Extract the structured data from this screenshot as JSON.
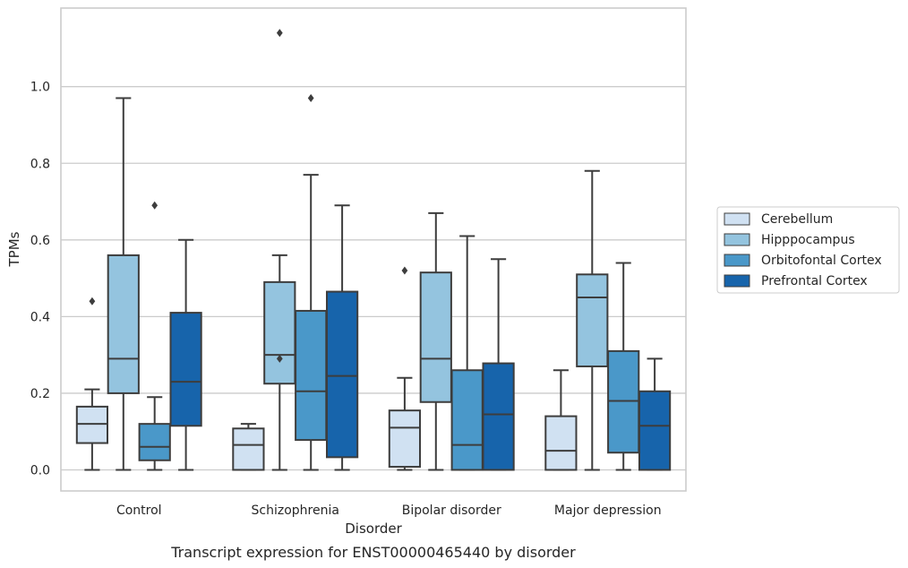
{
  "chart_data": {
    "type": "box",
    "caption": "Transcript expression for ENST00000465440 by disorder",
    "xlabel": "Disorder",
    "ylabel": "TPMs",
    "ylim": [
      -0.055,
      1.205
    ],
    "yticks": [
      0.0,
      0.2,
      0.4,
      0.6,
      0.8,
      1.0
    ],
    "ytick_labels": [
      "0.0",
      "0.2",
      "0.4",
      "0.6",
      "0.8",
      "1.0"
    ],
    "grid": "horizontal",
    "legend_position": "right",
    "categories": [
      "Control",
      "Schizophrenia",
      "Bipolar disorder",
      "Major depression"
    ],
    "series": [
      {
        "name": "Cerebellum",
        "color": "#d0e1f2",
        "boxes": [
          {
            "whisker_low": 0.0,
            "q1": 0.07,
            "median": 0.12,
            "q3": 0.165,
            "whisker_high": 0.21,
            "outliers": [
              0.44
            ]
          },
          {
            "whisker_low": 0.0,
            "q1": 0.0,
            "median": 0.065,
            "q3": 0.108,
            "whisker_high": 0.12,
            "outliers": []
          },
          {
            "whisker_low": 0.0,
            "q1": 0.008,
            "median": 0.11,
            "q3": 0.155,
            "whisker_high": 0.24,
            "outliers": [
              0.52
            ]
          },
          {
            "whisker_low": 0.0,
            "q1": 0.0,
            "median": 0.05,
            "q3": 0.14,
            "whisker_high": 0.26,
            "outliers": []
          }
        ]
      },
      {
        "name": "Hipppocampus",
        "color": "#94c4df",
        "boxes": [
          {
            "whisker_low": 0.0,
            "q1": 0.2,
            "median": 0.29,
            "q3": 0.56,
            "whisker_high": 0.97,
            "outliers": []
          },
          {
            "whisker_low": 0.0,
            "q1": 0.225,
            "median": 0.3,
            "q3": 0.49,
            "whisker_high": 0.56,
            "outliers": [
              1.14,
              0.29
            ]
          },
          {
            "whisker_low": 0.0,
            "q1": 0.177,
            "median": 0.29,
            "q3": 0.515,
            "whisker_high": 0.67,
            "outliers": []
          },
          {
            "whisker_low": 0.0,
            "q1": 0.27,
            "median": 0.45,
            "q3": 0.51,
            "whisker_high": 0.78,
            "outliers": []
          }
        ]
      },
      {
        "name": "Orbitofontal Cortex",
        "color": "#4a98c9",
        "boxes": [
          {
            "whisker_low": 0.0,
            "q1": 0.025,
            "median": 0.06,
            "q3": 0.12,
            "whisker_high": 0.19,
            "outliers": [
              0.69
            ]
          },
          {
            "whisker_low": 0.0,
            "q1": 0.078,
            "median": 0.205,
            "q3": 0.415,
            "whisker_high": 0.77,
            "outliers": [
              0.97
            ]
          },
          {
            "whisker_low": 0.0,
            "q1": 0.0,
            "median": 0.065,
            "q3": 0.26,
            "whisker_high": 0.61,
            "outliers": []
          },
          {
            "whisker_low": 0.0,
            "q1": 0.045,
            "median": 0.18,
            "q3": 0.31,
            "whisker_high": 0.54,
            "outliers": []
          }
        ]
      },
      {
        "name": "Prefrontal Cortex",
        "color": "#1764ab",
        "boxes": [
          {
            "whisker_low": 0.0,
            "q1": 0.115,
            "median": 0.23,
            "q3": 0.41,
            "whisker_high": 0.6,
            "outliers": []
          },
          {
            "whisker_low": 0.0,
            "q1": 0.033,
            "median": 0.245,
            "q3": 0.465,
            "whisker_high": 0.69,
            "outliers": []
          },
          {
            "whisker_low": 0.0,
            "q1": 0.0,
            "median": 0.145,
            "q3": 0.278,
            "whisker_high": 0.55,
            "outliers": []
          },
          {
            "whisker_low": 0.0,
            "q1": 0.0,
            "median": 0.115,
            "q3": 0.205,
            "whisker_high": 0.29,
            "outliers": []
          }
        ]
      }
    ]
  }
}
